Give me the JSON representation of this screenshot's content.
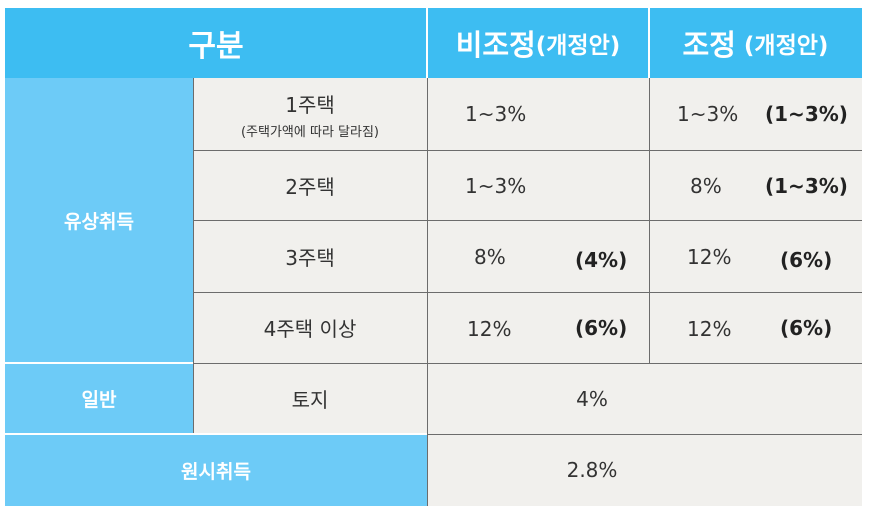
{
  "header": {
    "col1": "구분",
    "col2_main": "비조정",
    "col2_sub": "(개정안)",
    "col3_main": "조정",
    "col3_sub": "(개정안)"
  },
  "groups": {
    "paid": "유상취득",
    "general": "일반",
    "original": "원시취득"
  },
  "rows": [
    {
      "label": "1주택",
      "sublabel": "(주택가액에 따라 달라짐)",
      "nonreg": "1~3%",
      "nonreg_new": "",
      "reg": "1~3%",
      "reg_new": "(1~3%)"
    },
    {
      "label": "2주택",
      "sublabel": "",
      "nonreg": "1~3%",
      "nonreg_new": "",
      "reg": "8%",
      "reg_new": "(1~3%)"
    },
    {
      "label": "3주택",
      "sublabel": "",
      "nonreg": "8%",
      "nonreg_new": "(4%)",
      "reg": "12%",
      "reg_new": "(6%)"
    },
    {
      "label": "4주택 이상",
      "sublabel": "",
      "nonreg": "12%",
      "nonreg_new": "(6%)",
      "reg": "12%",
      "reg_new": "(6%)"
    }
  ],
  "land": {
    "label": "토지",
    "value": "4%"
  },
  "original_value": "2.8%"
}
